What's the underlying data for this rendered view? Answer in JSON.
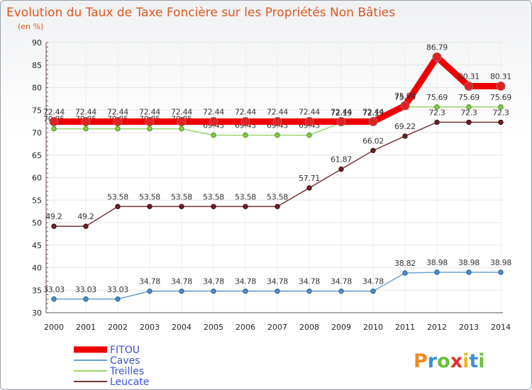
{
  "chart_data": {
    "type": "line",
    "title": "Evolution du Taux de Taxe Foncière sur les Propriétés Non Bâties",
    "subtitle": "(en %)",
    "xlabel": "",
    "ylabel": "",
    "ylim": [
      30,
      90
    ],
    "yticks": [
      30,
      35,
      40,
      45,
      50,
      55,
      60,
      65,
      70,
      75,
      80,
      85,
      90
    ],
    "categories": [
      "2000",
      "2001",
      "2002",
      "2003",
      "2004",
      "2005",
      "2006",
      "2007",
      "2008",
      "2009",
      "2010",
      "2011",
      "2012",
      "2013",
      "2014"
    ],
    "legend_position": "bottom-left",
    "series": [
      {
        "name": "FITOU",
        "color": "#ee0000",
        "values": [
          72.44,
          72.44,
          72.44,
          72.44,
          72.44,
          72.44,
          72.44,
          72.44,
          72.44,
          72.44,
          72.44,
          75.99,
          86.79,
          80.31,
          80.31
        ],
        "labels": [
          "72.44",
          "72.44",
          "72.44",
          "72.44",
          "72.44",
          "72.44",
          "72.44",
          "72.44",
          "72.44",
          "72.44",
          "72.44",
          "75.99",
          "86.79",
          "80.31",
          "80.31"
        ]
      },
      {
        "name": "Caves",
        "color": "#5a9bd5",
        "values": [
          33.03,
          33.03,
          33.03,
          34.78,
          34.78,
          34.78,
          34.78,
          34.78,
          34.78,
          34.78,
          34.78,
          38.82,
          38.98,
          38.98,
          38.98
        ],
        "labels": [
          "33.03",
          "33.03",
          "33.03",
          "34.78",
          "34.78",
          "34.78",
          "34.78",
          "34.78",
          "34.78",
          "34.78",
          "34.78",
          "38.82",
          "38.98",
          "38.98",
          "38.98"
        ]
      },
      {
        "name": "Treilles",
        "color": "#8fd35a",
        "values": [
          70.85,
          70.85,
          70.85,
          70.85,
          70.85,
          69.43,
          69.43,
          69.43,
          69.43,
          72.19,
          72.19,
          75.69,
          75.69,
          75.69,
          75.69
        ],
        "labels": [
          "70.85",
          "70.85",
          "70.85",
          "70.85",
          "70.85",
          "69.43",
          "69.43",
          "69.43",
          "69.43",
          "72.19",
          "72.19",
          "75.69",
          "75.69",
          "75.69",
          "75.69"
        ]
      },
      {
        "name": "Leucate",
        "color": "#7a2b2b",
        "values": [
          49.2,
          49.2,
          53.58,
          53.58,
          53.58,
          53.58,
          53.58,
          53.58,
          57.71,
          61.87,
          66.02,
          69.22,
          72.3,
          72.3,
          72.3
        ],
        "labels": [
          "49.2",
          "49.2",
          "53.58",
          "53.58",
          "53.58",
          "53.58",
          "53.58",
          "53.58",
          "57.71",
          "61.87",
          "66.02",
          "69.22",
          "72.3",
          "72.3",
          "72.3"
        ]
      }
    ]
  },
  "logo": {
    "text": "Proxiti"
  }
}
